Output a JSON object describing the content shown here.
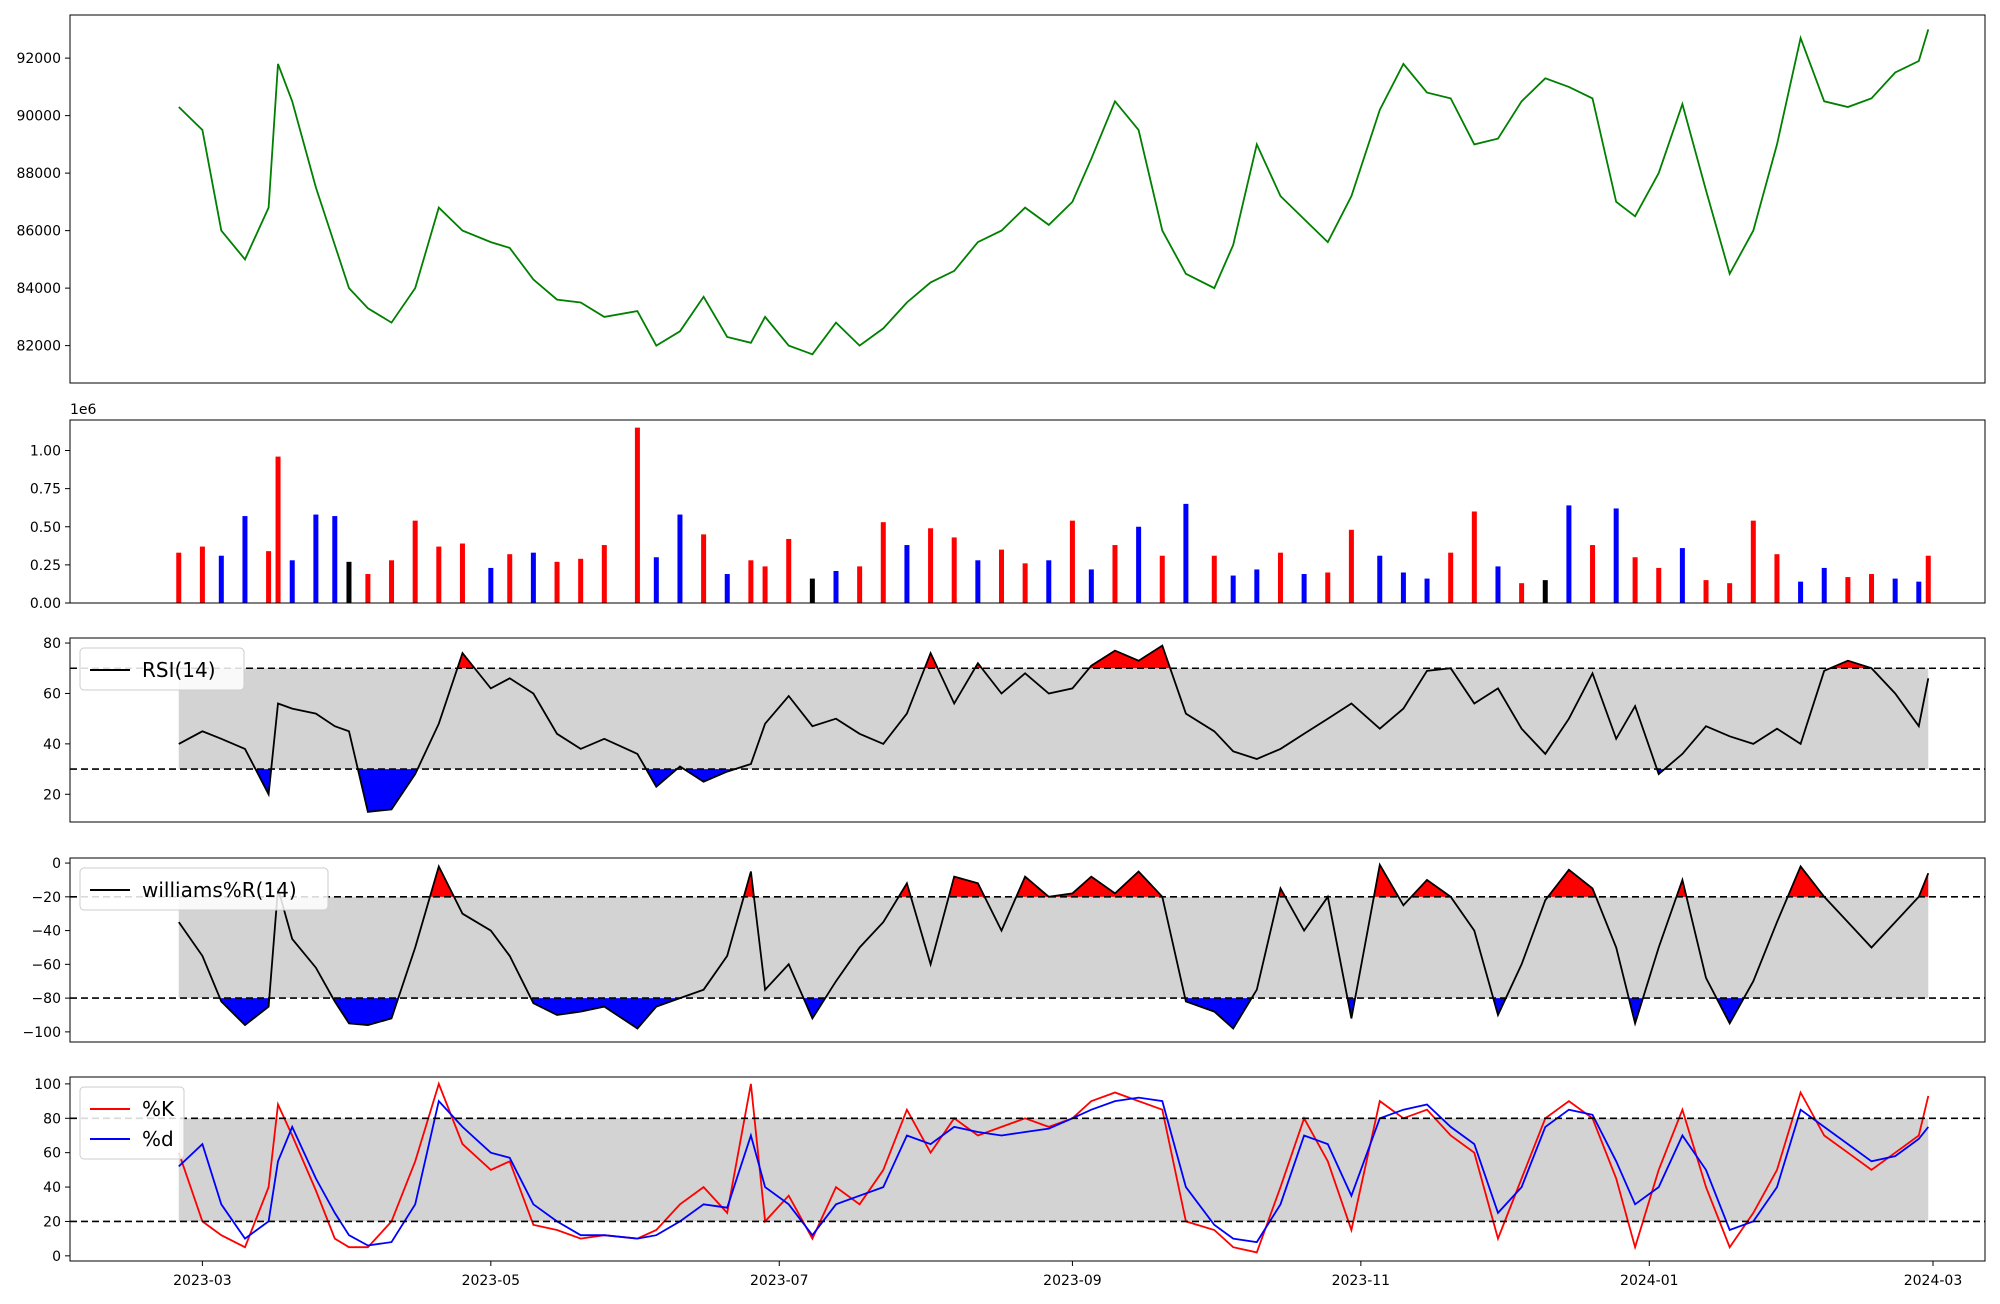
{
  "chart_data": [
    {
      "id": "price",
      "type": "line",
      "color": "#008000",
      "xlim": [
        "2023-02-01",
        "2024-03-12"
      ],
      "ylim": [
        80700,
        93500
      ],
      "yticks": [
        82000,
        84000,
        86000,
        88000,
        90000,
        92000
      ],
      "ytick_labels": [
        "82000",
        "84000",
        "86000",
        "88000",
        "90000",
        "92000"
      ],
      "x": [
        "2023-02-24",
        "2023-03-01",
        "2023-03-05",
        "2023-03-10",
        "2023-03-15",
        "2023-03-17",
        "2023-03-20",
        "2023-03-25",
        "2023-03-29",
        "2023-04-01",
        "2023-04-05",
        "2023-04-10",
        "2023-04-15",
        "2023-04-20",
        "2023-04-25",
        "2023-05-01",
        "2023-05-05",
        "2023-05-10",
        "2023-05-15",
        "2023-05-20",
        "2023-05-25",
        "2023-06-01",
        "2023-06-05",
        "2023-06-10",
        "2023-06-15",
        "2023-06-20",
        "2023-06-25",
        "2023-06-28",
        "2023-07-03",
        "2023-07-08",
        "2023-07-13",
        "2023-07-18",
        "2023-07-23",
        "2023-07-28",
        "2023-08-02",
        "2023-08-07",
        "2023-08-12",
        "2023-08-17",
        "2023-08-22",
        "2023-08-27",
        "2023-09-01",
        "2023-09-05",
        "2023-09-10",
        "2023-09-15",
        "2023-09-20",
        "2023-09-25",
        "2023-10-01",
        "2023-10-05",
        "2023-10-10",
        "2023-10-15",
        "2023-10-20",
        "2023-10-25",
        "2023-10-30",
        "2023-11-05",
        "2023-11-10",
        "2023-11-15",
        "2023-11-20",
        "2023-11-25",
        "2023-11-30",
        "2023-12-05",
        "2023-12-10",
        "2023-12-15",
        "2023-12-20",
        "2023-12-25",
        "2023-12-29",
        "2024-01-03",
        "2024-01-08",
        "2024-01-13",
        "2024-01-18",
        "2024-01-23",
        "2024-01-28",
        "2024-02-02",
        "2024-02-07",
        "2024-02-12",
        "2024-02-17",
        "2024-02-22",
        "2024-02-27",
        "2024-02-29"
      ],
      "values": [
        90300,
        89500,
        86000,
        85000,
        86800,
        91800,
        90500,
        87500,
        85500,
        84000,
        83300,
        82800,
        84000,
        86800,
        86000,
        85600,
        85400,
        84300,
        83600,
        83500,
        83000,
        83200,
        82000,
        82500,
        83700,
        82300,
        82100,
        83000,
        82000,
        81700,
        82800,
        82000,
        82600,
        83500,
        84200,
        84600,
        85600,
        86000,
        86800,
        86200,
        87000,
        88500,
        90500,
        89500,
        86000,
        84500,
        84000,
        85500,
        89000,
        87200,
        86400,
        85600,
        87200,
        90200,
        91800,
        90800,
        90600,
        89000,
        89200,
        90500,
        91300,
        91000,
        90600,
        87000,
        86500,
        88000,
        90400,
        87400,
        84500,
        86000,
        89000,
        92700,
        90500,
        90300,
        90600,
        91500,
        91900,
        93000
      ]
    },
    {
      "id": "volume",
      "type": "bar",
      "offset_label": "1e6",
      "xlim": [
        "2023-02-01",
        "2024-03-12"
      ],
      "ylim": [
        0,
        1200000
      ],
      "yticks": [
        0,
        250000,
        500000,
        750000,
        1000000
      ],
      "ytick_labels": [
        "0.00",
        "0.25",
        "0.50",
        "0.75",
        "1.00"
      ],
      "colors": {
        "up": "#ff0000",
        "down": "#0000ff",
        "flat": "#000000"
      },
      "x": [
        "2023-02-24",
        "2023-03-01",
        "2023-03-05",
        "2023-03-10",
        "2023-03-15",
        "2023-03-17",
        "2023-03-20",
        "2023-03-25",
        "2023-03-29",
        "2023-04-01",
        "2023-04-05",
        "2023-04-10",
        "2023-04-15",
        "2023-04-20",
        "2023-04-25",
        "2023-05-01",
        "2023-05-05",
        "2023-05-10",
        "2023-05-15",
        "2023-05-20",
        "2023-05-25",
        "2023-06-01",
        "2023-06-05",
        "2023-06-10",
        "2023-06-15",
        "2023-06-20",
        "2023-06-25",
        "2023-06-28",
        "2023-07-03",
        "2023-07-08",
        "2023-07-13",
        "2023-07-18",
        "2023-07-23",
        "2023-07-28",
        "2023-08-02",
        "2023-08-07",
        "2023-08-12",
        "2023-08-17",
        "2023-08-22",
        "2023-08-27",
        "2023-09-01",
        "2023-09-05",
        "2023-09-10",
        "2023-09-15",
        "2023-09-20",
        "2023-09-25",
        "2023-10-01",
        "2023-10-05",
        "2023-10-10",
        "2023-10-15",
        "2023-10-20",
        "2023-10-25",
        "2023-10-30",
        "2023-11-05",
        "2023-11-10",
        "2023-11-15",
        "2023-11-20",
        "2023-11-25",
        "2023-11-30",
        "2023-12-05",
        "2023-12-10",
        "2023-12-15",
        "2023-12-20",
        "2023-12-25",
        "2023-12-29",
        "2024-01-03",
        "2024-01-08",
        "2024-01-13",
        "2024-01-18",
        "2024-01-23",
        "2024-01-28",
        "2024-02-02",
        "2024-02-07",
        "2024-02-12",
        "2024-02-17",
        "2024-02-22",
        "2024-02-27",
        "2024-02-29"
      ],
      "values": [
        330000,
        370000,
        310000,
        570000,
        340000,
        960000,
        280000,
        580000,
        570000,
        270000,
        190000,
        280000,
        540000,
        370000,
        390000,
        230000,
        320000,
        330000,
        270000,
        290000,
        380000,
        1150000,
        300000,
        580000,
        450000,
        190000,
        280000,
        240000,
        420000,
        160000,
        210000,
        240000,
        530000,
        380000,
        490000,
        430000,
        280000,
        350000,
        260000,
        280000,
        540000,
        220000,
        380000,
        500000,
        310000,
        650000,
        310000,
        180000,
        220000,
        330000,
        190000,
        200000,
        480000,
        310000,
        200000,
        160000,
        330000,
        600000,
        240000,
        130000,
        150000,
        640000,
        380000,
        620000,
        300000,
        230000,
        360000,
        150000,
        130000,
        540000,
        320000,
        140000,
        230000,
        170000,
        190000,
        160000,
        140000,
        310000
      ],
      "directions": [
        "up",
        "up",
        "down",
        "down",
        "up",
        "up",
        "down",
        "down",
        "down",
        "flat",
        "up",
        "up",
        "up",
        "up",
        "up",
        "down",
        "up",
        "down",
        "up",
        "up",
        "up",
        "up",
        "down",
        "down",
        "up",
        "down",
        "up",
        "up",
        "up",
        "flat",
        "down",
        "up",
        "up",
        "down",
        "up",
        "up",
        "down",
        "up",
        "up",
        "down",
        "up",
        "down",
        "up",
        "down",
        "up",
        "down",
        "up",
        "down",
        "down",
        "up",
        "down",
        "up",
        "up",
        "down",
        "down",
        "down",
        "up",
        "up",
        "down",
        "up",
        "flat",
        "down",
        "up",
        "down",
        "up",
        "up",
        "down",
        "up",
        "up",
        "up",
        "up",
        "down",
        "down",
        "up",
        "up",
        "down",
        "down",
        "up"
      ]
    },
    {
      "id": "rsi",
      "type": "area",
      "legend": "RSI(14)",
      "xlim": [
        "2023-02-01",
        "2024-03-12"
      ],
      "ylim": [
        9,
        82
      ],
      "yticks": [
        20,
        40,
        60,
        80
      ],
      "ytick_labels": [
        "20",
        "40",
        "60",
        "80"
      ],
      "bands": [
        30,
        70
      ],
      "x": [
        "2023-02-24",
        "2023-03-01",
        "2023-03-05",
        "2023-03-10",
        "2023-03-15",
        "2023-03-17",
        "2023-03-20",
        "2023-03-25",
        "2023-03-29",
        "2023-04-01",
        "2023-04-05",
        "2023-04-10",
        "2023-04-15",
        "2023-04-20",
        "2023-04-25",
        "2023-05-01",
        "2023-05-05",
        "2023-05-10",
        "2023-05-15",
        "2023-05-20",
        "2023-05-25",
        "2023-06-01",
        "2023-06-05",
        "2023-06-10",
        "2023-06-15",
        "2023-06-20",
        "2023-06-25",
        "2023-06-28",
        "2023-07-03",
        "2023-07-08",
        "2023-07-13",
        "2023-07-18",
        "2023-07-23",
        "2023-07-28",
        "2023-08-02",
        "2023-08-07",
        "2023-08-12",
        "2023-08-17",
        "2023-08-22",
        "2023-08-27",
        "2023-09-01",
        "2023-09-05",
        "2023-09-10",
        "2023-09-15",
        "2023-09-20",
        "2023-09-25",
        "2023-10-01",
        "2023-10-05",
        "2023-10-10",
        "2023-10-15",
        "2023-10-20",
        "2023-10-25",
        "2023-10-30",
        "2023-11-05",
        "2023-11-10",
        "2023-11-15",
        "2023-11-20",
        "2023-11-25",
        "2023-11-30",
        "2023-12-05",
        "2023-12-10",
        "2023-12-15",
        "2023-12-20",
        "2023-12-25",
        "2023-12-29",
        "2024-01-03",
        "2024-01-08",
        "2024-01-13",
        "2024-01-18",
        "2024-01-23",
        "2024-01-28",
        "2024-02-02",
        "2024-02-07",
        "2024-02-12",
        "2024-02-17",
        "2024-02-22",
        "2024-02-27",
        "2024-02-29"
      ],
      "values": [
        40,
        45,
        42,
        38,
        20,
        56,
        54,
        52,
        47,
        45,
        13,
        14,
        28,
        48,
        76,
        62,
        66,
        60,
        44,
        38,
        42,
        36,
        23,
        31,
        25,
        29,
        32,
        48,
        59,
        47,
        50,
        44,
        40,
        52,
        76,
        56,
        72,
        60,
        68,
        60,
        62,
        71,
        77,
        73,
        79,
        52,
        45,
        37,
        34,
        38,
        44,
        50,
        56,
        46,
        54,
        69,
        70,
        56,
        62,
        46,
        36,
        50,
        68,
        42,
        55,
        28,
        36,
        47,
        43,
        40,
        46,
        40,
        69,
        73,
        70,
        60,
        47,
        66
      ]
    },
    {
      "id": "williams",
      "type": "area",
      "legend": "williams%R(14)",
      "xlim": [
        "2023-02-01",
        "2024-03-12"
      ],
      "ylim": [
        -106,
        3
      ],
      "yticks": [
        -100,
        -80,
        -60,
        -40,
        -20,
        0
      ],
      "ytick_labels": [
        "−100",
        "−80",
        "−60",
        "−40",
        "−20",
        "0"
      ],
      "bands": [
        -80,
        -20
      ],
      "x": [
        "2023-02-24",
        "2023-03-01",
        "2023-03-05",
        "2023-03-10",
        "2023-03-15",
        "2023-03-17",
        "2023-03-20",
        "2023-03-25",
        "2023-03-29",
        "2023-04-01",
        "2023-04-05",
        "2023-04-10",
        "2023-04-15",
        "2023-04-20",
        "2023-04-25",
        "2023-05-01",
        "2023-05-05",
        "2023-05-10",
        "2023-05-15",
        "2023-05-20",
        "2023-05-25",
        "2023-06-01",
        "2023-06-05",
        "2023-06-10",
        "2023-06-15",
        "2023-06-20",
        "2023-06-25",
        "2023-06-28",
        "2023-07-03",
        "2023-07-08",
        "2023-07-13",
        "2023-07-18",
        "2023-07-23",
        "2023-07-28",
        "2023-08-02",
        "2023-08-07",
        "2023-08-12",
        "2023-08-17",
        "2023-08-22",
        "2023-08-27",
        "2023-09-01",
        "2023-09-05",
        "2023-09-10",
        "2023-09-15",
        "2023-09-20",
        "2023-09-25",
        "2023-10-01",
        "2023-10-05",
        "2023-10-10",
        "2023-10-15",
        "2023-10-20",
        "2023-10-25",
        "2023-10-30",
        "2023-11-05",
        "2023-11-10",
        "2023-11-15",
        "2023-11-20",
        "2023-11-25",
        "2023-11-30",
        "2023-12-05",
        "2023-12-10",
        "2023-12-15",
        "2023-12-20",
        "2023-12-25",
        "2023-12-29",
        "2024-01-03",
        "2024-01-08",
        "2024-01-13",
        "2024-01-18",
        "2024-01-23",
        "2024-01-28",
        "2024-02-02",
        "2024-02-07",
        "2024-02-12",
        "2024-02-17",
        "2024-02-22",
        "2024-02-27",
        "2024-02-29"
      ],
      "values": [
        -35,
        -55,
        -82,
        -96,
        -85,
        -15,
        -45,
        -62,
        -82,
        -95,
        -96,
        -92,
        -50,
        -2,
        -30,
        -40,
        -55,
        -83,
        -90,
        -88,
        -85,
        -98,
        -85,
        -80,
        -75,
        -55,
        -5,
        -75,
        -60,
        -92,
        -70,
        -50,
        -35,
        -12,
        -60,
        -8,
        -12,
        -40,
        -8,
        -20,
        -18,
        -8,
        -18,
        -5,
        -20,
        -82,
        -88,
        -98,
        -75,
        -15,
        -40,
        -20,
        -92,
        -1,
        -25,
        -10,
        -20,
        -40,
        -90,
        -60,
        -22,
        -4,
        -15,
        -50,
        -95,
        -50,
        -10,
        -68,
        -95,
        -70,
        -35,
        -2,
        -20,
        -35,
        -50,
        -35,
        -20,
        -6
      ]
    },
    {
      "id": "stochastic",
      "type": "line",
      "xlim": [
        "2023-02-01",
        "2024-03-12"
      ],
      "ylim": [
        -3,
        104
      ],
      "yticks": [
        0,
        20,
        40,
        60,
        80,
        100
      ],
      "ytick_labels": [
        "0",
        "20",
        "40",
        "60",
        "80",
        "100"
      ],
      "bands": [
        20,
        80
      ],
      "xticks": [
        "2023-03-01",
        "2023-05-01",
        "2023-07-01",
        "2023-09-01",
        "2023-11-01",
        "2024-01-01",
        "2024-03-01"
      ],
      "xtick_labels": [
        "2023-03",
        "2023-05",
        "2023-07",
        "2023-09",
        "2023-11",
        "2024-01",
        "2024-03"
      ],
      "x": [
        "2023-02-24",
        "2023-03-01",
        "2023-03-05",
        "2023-03-10",
        "2023-03-15",
        "2023-03-17",
        "2023-03-20",
        "2023-03-25",
        "2023-03-29",
        "2023-04-01",
        "2023-04-05",
        "2023-04-10",
        "2023-04-15",
        "2023-04-20",
        "2023-04-25",
        "2023-05-01",
        "2023-05-05",
        "2023-05-10",
        "2023-05-15",
        "2023-05-20",
        "2023-05-25",
        "2023-06-01",
        "2023-06-05",
        "2023-06-10",
        "2023-06-15",
        "2023-06-20",
        "2023-06-25",
        "2023-06-28",
        "2023-07-03",
        "2023-07-08",
        "2023-07-13",
        "2023-07-18",
        "2023-07-23",
        "2023-07-28",
        "2023-08-02",
        "2023-08-07",
        "2023-08-12",
        "2023-08-17",
        "2023-08-22",
        "2023-08-27",
        "2023-09-01",
        "2023-09-05",
        "2023-09-10",
        "2023-09-15",
        "2023-09-20",
        "2023-09-25",
        "2023-10-01",
        "2023-10-05",
        "2023-10-10",
        "2023-10-15",
        "2023-10-20",
        "2023-10-25",
        "2023-10-30",
        "2023-11-05",
        "2023-11-10",
        "2023-11-15",
        "2023-11-20",
        "2023-11-25",
        "2023-11-30",
        "2023-12-05",
        "2023-12-10",
        "2023-12-15",
        "2023-12-20",
        "2023-12-25",
        "2023-12-29",
        "2024-01-03",
        "2024-01-08",
        "2024-01-13",
        "2024-01-18",
        "2024-01-23",
        "2024-01-28",
        "2024-02-02",
        "2024-02-07",
        "2024-02-12",
        "2024-02-17",
        "2024-02-22",
        "2024-02-27",
        "2024-02-29"
      ],
      "series": [
        {
          "name": "%K",
          "color": "#ff0000",
          "values": [
            60,
            20,
            12,
            5,
            40,
            88,
            70,
            38,
            10,
            5,
            5,
            20,
            55,
            100,
            65,
            50,
            55,
            18,
            15,
            10,
            12,
            10,
            15,
            30,
            40,
            25,
            100,
            20,
            35,
            10,
            40,
            30,
            50,
            85,
            60,
            80,
            70,
            75,
            80,
            75,
            80,
            90,
            95,
            90,
            85,
            20,
            15,
            5,
            2,
            40,
            80,
            55,
            15,
            90,
            80,
            85,
            70,
            60,
            10,
            45,
            80,
            90,
            80,
            45,
            5,
            50,
            85,
            40,
            5,
            25,
            50,
            95,
            70,
            60,
            50,
            60,
            70,
            93
          ]
        },
        {
          "name": "%d",
          "color": "#0000ff",
          "values": [
            52,
            65,
            30,
            10,
            20,
            55,
            75,
            45,
            25,
            12,
            6,
            8,
            30,
            90,
            75,
            60,
            57,
            30,
            20,
            12,
            12,
            10,
            12,
            20,
            30,
            28,
            70,
            40,
            30,
            12,
            30,
            35,
            40,
            70,
            65,
            75,
            72,
            70,
            72,
            74,
            80,
            85,
            90,
            92,
            90,
            40,
            18,
            10,
            8,
            30,
            70,
            65,
            35,
            80,
            85,
            88,
            75,
            65,
            25,
            40,
            75,
            85,
            82,
            55,
            30,
            40,
            70,
            50,
            15,
            20,
            40,
            85,
            75,
            65,
            55,
            58,
            68,
            75
          ]
        }
      ]
    }
  ]
}
